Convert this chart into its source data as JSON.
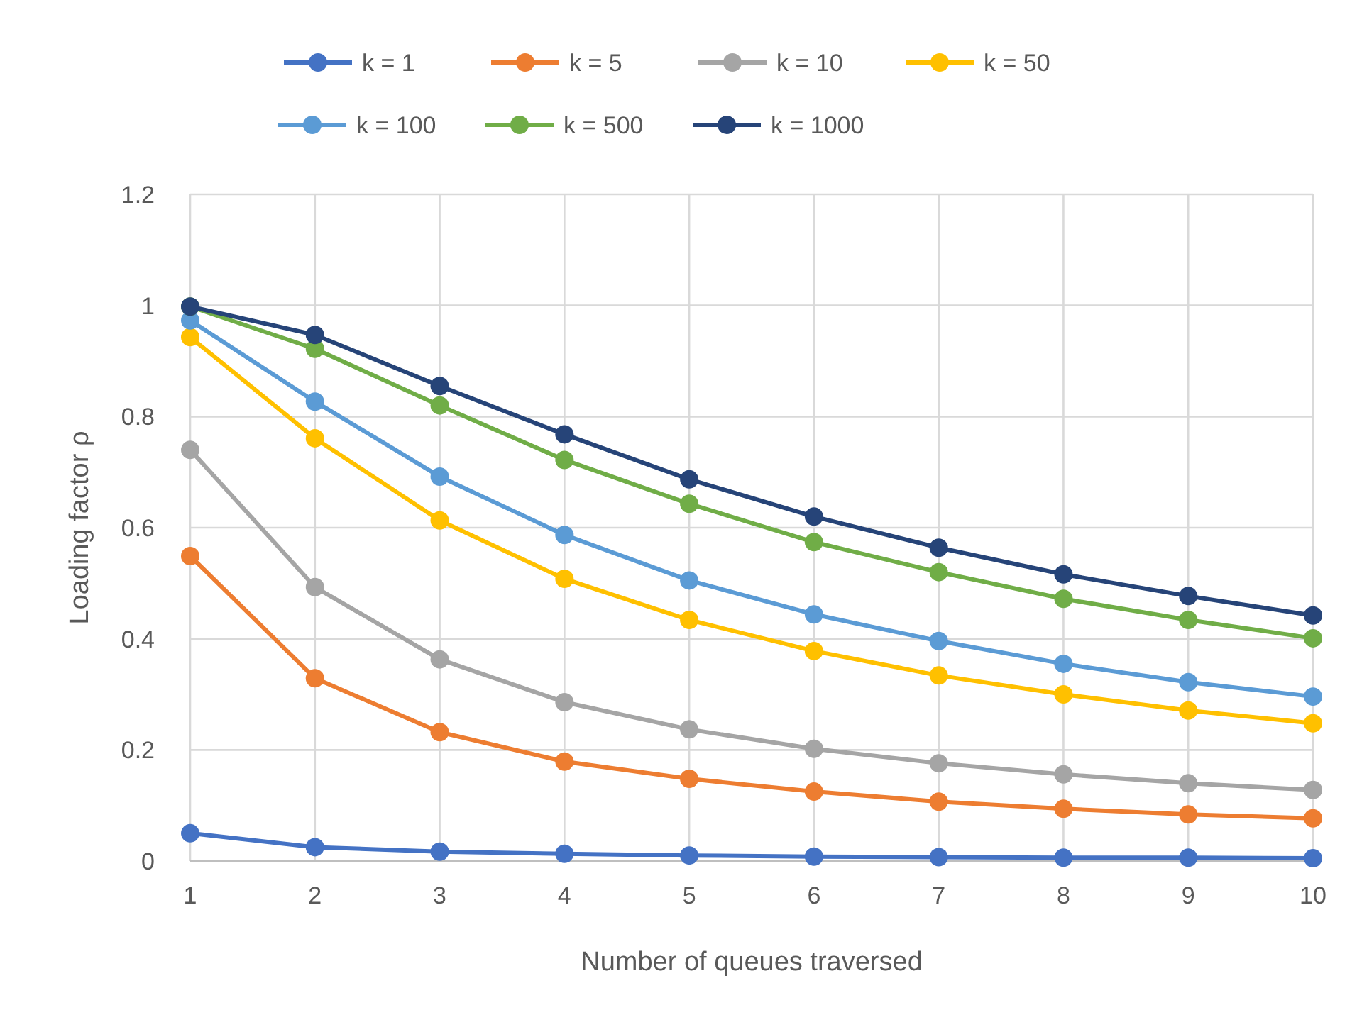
{
  "chart_data": {
    "type": "line",
    "xlabel": "Number of queues traversed",
    "ylabel": "Loading factor ρ",
    "x": [
      1,
      2,
      3,
      4,
      5,
      6,
      7,
      8,
      9,
      10
    ],
    "xlim": [
      1,
      10
    ],
    "xticks": [
      1,
      2,
      3,
      4,
      5,
      6,
      7,
      8,
      9,
      10
    ],
    "ylim": [
      0,
      1.2
    ],
    "yticks": [
      0,
      0.2,
      0.4,
      0.6,
      0.8,
      1,
      1.2
    ],
    "grid": true,
    "legend": "top",
    "marker": "circle",
    "line_style": "solid",
    "series": [
      {
        "name": "k = 1",
        "color": "#4472c4",
        "values": [
          0.05,
          0.025,
          0.017,
          0.013,
          0.01,
          0.008,
          0.007,
          0.006,
          0.006,
          0.005
        ]
      },
      {
        "name": "k = 5",
        "color": "#ed7d31",
        "values": [
          0.549,
          0.329,
          0.232,
          0.179,
          0.148,
          0.125,
          0.107,
          0.094,
          0.084,
          0.077
        ]
      },
      {
        "name": "k = 10",
        "color": "#a5a5a5",
        "values": [
          0.74,
          0.493,
          0.363,
          0.286,
          0.237,
          0.202,
          0.176,
          0.156,
          0.14,
          0.128
        ]
      },
      {
        "name": "k = 50",
        "color": "#ffc000",
        "values": [
          0.943,
          0.761,
          0.613,
          0.508,
          0.434,
          0.378,
          0.334,
          0.3,
          0.271,
          0.248
        ]
      },
      {
        "name": "k = 100",
        "color": "#5b9bd5",
        "values": [
          0.973,
          0.827,
          0.692,
          0.587,
          0.505,
          0.444,
          0.396,
          0.355,
          0.322,
          0.296
        ]
      },
      {
        "name": "k = 500",
        "color": "#70ad47",
        "values": [
          0.998,
          0.922,
          0.82,
          0.722,
          0.643,
          0.574,
          0.52,
          0.472,
          0.434,
          0.401
        ]
      },
      {
        "name": "k = 1000",
        "color": "#264478",
        "values": [
          0.998,
          0.947,
          0.855,
          0.768,
          0.687,
          0.62,
          0.564,
          0.516,
          0.477,
          0.442
        ]
      }
    ]
  }
}
